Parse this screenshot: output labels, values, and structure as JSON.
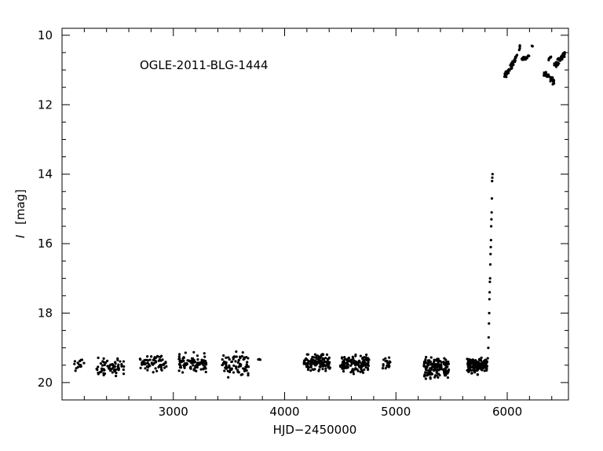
{
  "chart_data": {
    "type": "scatter",
    "title": "",
    "annotation": "OGLE-2011-BLG-1444",
    "xlabel": "HJD−2450000",
    "ylabel_symbol": "I",
    "ylabel_unit": "[mag]",
    "xlim": [
      2000,
      6550
    ],
    "ylim": [
      20.5,
      9.8
    ],
    "y_inverted": true,
    "x_major_ticks": [
      3000,
      4000,
      5000,
      6000
    ],
    "x_tick_labels": [
      "3000",
      "4000",
      "5000",
      "6000"
    ],
    "y_major_ticks": [
      10,
      12,
      14,
      16,
      18,
      20
    ],
    "y_tick_labels": [
      "10",
      "12",
      "14",
      "16",
      "18",
      "20"
    ],
    "grid": false,
    "legend": false,
    "marker_color": "#000000",
    "series": [
      {
        "segments": [
          {
            "x_start": 2100,
            "x_end": 2200,
            "y_center": 19.45,
            "y_spread": 0.45,
            "count": 14
          },
          {
            "x_start": 2300,
            "x_end": 2560,
            "y_center": 19.55,
            "y_spread": 0.5,
            "count": 70
          },
          {
            "x_start": 2700,
            "x_end": 2940,
            "y_center": 19.45,
            "y_spread": 0.45,
            "count": 65
          },
          {
            "x_start": 3050,
            "x_end": 3300,
            "y_center": 19.45,
            "y_spread": 0.55,
            "count": 100
          },
          {
            "x_start": 3430,
            "x_end": 3680,
            "y_center": 19.5,
            "y_spread": 0.65,
            "count": 80
          },
          {
            "x_start": 3760,
            "x_end": 3790,
            "y_center": 19.35,
            "y_spread": 0.1,
            "count": 3
          },
          {
            "x_start": 4170,
            "x_end": 4410,
            "y_center": 19.42,
            "y_spread": 0.45,
            "count": 140
          },
          {
            "x_start": 4500,
            "x_end": 4760,
            "y_center": 19.45,
            "y_spread": 0.5,
            "count": 140
          },
          {
            "x_start": 4880,
            "x_end": 4950,
            "y_center": 19.45,
            "y_spread": 0.45,
            "count": 18
          },
          {
            "x_start": 5250,
            "x_end": 5480,
            "y_center": 19.55,
            "y_spread": 0.65,
            "count": 160
          },
          {
            "x_start": 5640,
            "x_end": 5820,
            "y_center": 19.5,
            "y_spread": 0.45,
            "count": 170
          }
        ],
        "rise_points": [
          [
            5825,
            19.3
          ],
          [
            5830,
            19.0
          ],
          [
            5833,
            18.7
          ],
          [
            5836,
            18.3
          ],
          [
            5838,
            18.0
          ],
          [
            5840,
            17.6
          ],
          [
            5842,
            17.4
          ],
          [
            5844,
            17.1
          ],
          [
            5846,
            17.0
          ],
          [
            5848,
            16.6
          ],
          [
            5850,
            16.3
          ],
          [
            5852,
            16.1
          ],
          [
            5854,
            15.9
          ],
          [
            5856,
            15.5
          ],
          [
            5858,
            15.3
          ],
          [
            5860,
            15.1
          ],
          [
            5862,
            14.7
          ],
          [
            5864,
            14.2
          ],
          [
            5866,
            14.1
          ],
          [
            5868,
            14.0
          ]
        ],
        "bright_segments": [
          {
            "x_start": 5975,
            "x_end": 6080,
            "y_start": 11.2,
            "y_end": 10.65,
            "y_spread": 0.2,
            "count": 55
          },
          {
            "x_start": 6080,
            "x_end": 6120,
            "y_start": 10.6,
            "y_end": 10.3,
            "y_spread": 0.15,
            "count": 8
          },
          {
            "x_start": 6130,
            "x_end": 6200,
            "y_start": 10.7,
            "y_end": 10.6,
            "y_spread": 0.15,
            "count": 18
          },
          {
            "x_start": 6210,
            "x_end": 6230,
            "y_start": 10.35,
            "y_end": 10.3,
            "y_spread": 0.05,
            "count": 3
          },
          {
            "x_start": 6330,
            "x_end": 6420,
            "y_start": 11.1,
            "y_end": 11.35,
            "y_spread": 0.25,
            "count": 35
          },
          {
            "x_start": 6370,
            "x_end": 6400,
            "y_start": 10.7,
            "y_end": 10.6,
            "y_spread": 0.15,
            "count": 6
          },
          {
            "x_start": 6420,
            "x_end": 6520,
            "y_start": 10.9,
            "y_end": 10.55,
            "y_spread": 0.3,
            "count": 40
          }
        ]
      }
    ]
  }
}
